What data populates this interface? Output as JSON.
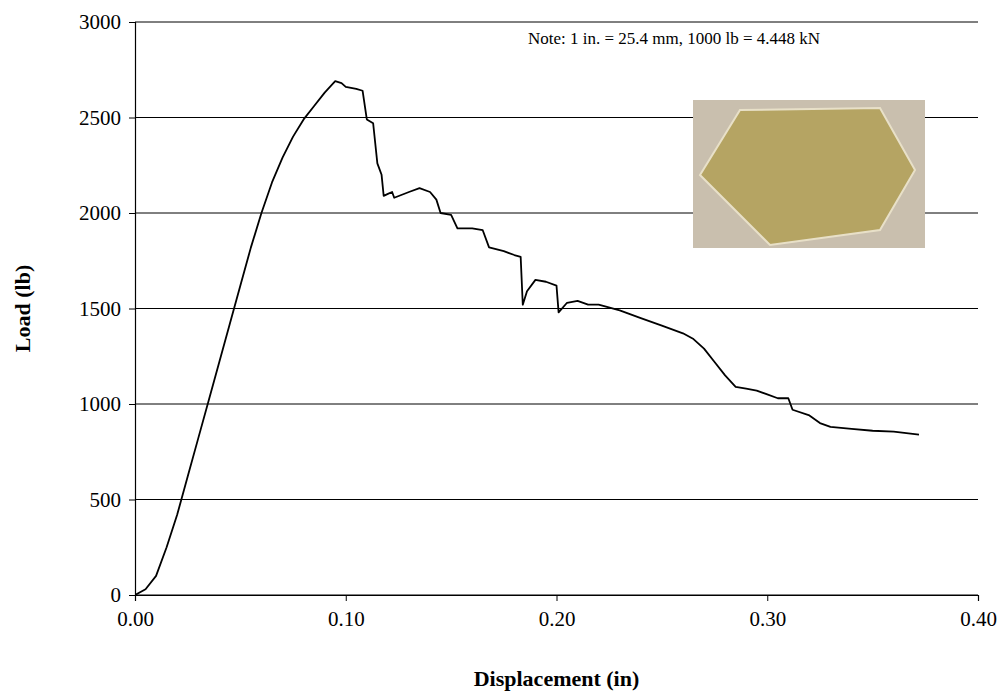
{
  "chart_data": {
    "type": "line",
    "x_label": "Displacement (in)",
    "y_label": "Load (lb)",
    "annotation": "Note: 1 in. = 25.4 mm, 1000 lb = 4.448 kN",
    "color": "#000000",
    "grid": true,
    "xlim": [
      0,
      0.4
    ],
    "ylim": [
      0,
      3000
    ],
    "xticks": [
      {
        "value": 0,
        "label": "0.00"
      },
      {
        "value": 0.1,
        "label": "0.10"
      },
      {
        "value": 0.2,
        "label": "0.20"
      },
      {
        "value": 0.3,
        "label": "0.30"
      },
      {
        "value": 0.4,
        "label": "0.40"
      }
    ],
    "yticks": [
      0,
      500,
      1000,
      1500,
      2000,
      2500,
      3000
    ],
    "x": [
      0,
      0.005,
      0.01,
      0.015,
      0.02,
      0.025,
      0.03,
      0.035,
      0.04,
      0.045,
      0.05,
      0.055,
      0.06,
      0.065,
      0.07,
      0.075,
      0.08,
      0.085,
      0.09,
      0.095,
      0.098,
      0.1,
      0.105,
      0.108,
      0.11,
      0.113,
      0.115,
      0.117,
      0.118,
      0.12,
      0.122,
      0.123,
      0.13,
      0.135,
      0.14,
      0.143,
      0.145,
      0.15,
      0.153,
      0.16,
      0.165,
      0.168,
      0.175,
      0.18,
      0.183,
      0.184,
      0.186,
      0.19,
      0.195,
      0.2,
      0.201,
      0.205,
      0.21,
      0.215,
      0.22,
      0.23,
      0.24,
      0.25,
      0.26,
      0.265,
      0.27,
      0.275,
      0.28,
      0.285,
      0.29,
      0.295,
      0.3,
      0.305,
      0.31,
      0.312,
      0.32,
      0.325,
      0.33,
      0.34,
      0.35,
      0.36,
      0.372
    ],
    "values": [
      0,
      30,
      100,
      250,
      420,
      620,
      820,
      1020,
      1220,
      1420,
      1620,
      1820,
      2000,
      2160,
      2290,
      2400,
      2490,
      2560,
      2630,
      2690,
      2680,
      2660,
      2650,
      2640,
      2490,
      2470,
      2260,
      2200,
      2090,
      2100,
      2110,
      2080,
      2110,
      2130,
      2110,
      2070,
      2000,
      1990,
      1920,
      1920,
      1910,
      1820,
      1800,
      1780,
      1770,
      1520,
      1590,
      1650,
      1640,
      1620,
      1480,
      1530,
      1540,
      1520,
      1520,
      1490,
      1450,
      1410,
      1370,
      1340,
      1290,
      1220,
      1150,
      1090,
      1080,
      1070,
      1050,
      1030,
      1030,
      970,
      940,
      900,
      880,
      870,
      860,
      855,
      840
    ]
  }
}
